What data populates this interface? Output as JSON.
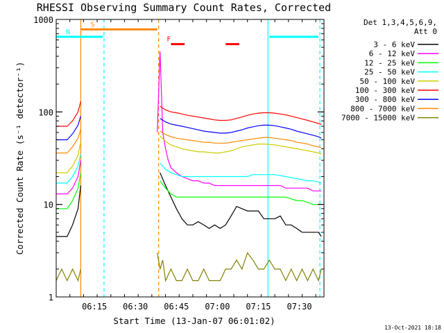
{
  "chart_data": {
    "type": "line",
    "title": "RHESSI Observing Summary Count Rates, Corrected",
    "xlabel": "Start Time (13-Jan-07 06:01:02)",
    "ylabel": "Corrected Count Rate (s⁻¹ detector⁻¹)",
    "ylog": true,
    "xlim_min": [
      0,
      98
    ],
    "ylim": [
      1,
      1000
    ],
    "xticks": [
      {
        "min": 14,
        "label": "06:15"
      },
      {
        "min": 29,
        "label": "06:30"
      },
      {
        "min": 44,
        "label": "06:45"
      },
      {
        "min": 59,
        "label": "07:00"
      },
      {
        "min": 74,
        "label": "07:15"
      },
      {
        "min": 89,
        "label": "07:30"
      }
    ],
    "yticks": [
      {
        "value": 1,
        "label": "1"
      },
      {
        "value": 10,
        "label": "10"
      },
      {
        "value": 100,
        "label": "100"
      },
      {
        "value": 1000,
        "label": "1000"
      }
    ],
    "legend": {
      "header": [
        "Det 1,3,4,5,6,9,",
        "Att 0"
      ],
      "position": "right"
    },
    "series": [
      {
        "name": "3 - 6 keV",
        "color": "#000000",
        "x": [
          0,
          4,
          6,
          8,
          9,
          36,
          38,
          40,
          42,
          44,
          46,
          48,
          50,
          52,
          54,
          56,
          58,
          60,
          62,
          64,
          66,
          68,
          70,
          72,
          74,
          76,
          78,
          80,
          82,
          84,
          86,
          88,
          90,
          92,
          94,
          96,
          97
        ],
        "y": [
          4.5,
          4.5,
          6,
          9,
          16,
          null,
          22,
          16,
          12,
          9,
          7,
          6,
          6,
          6.5,
          6,
          5.5,
          6,
          5.5,
          6,
          7.5,
          9.5,
          9,
          8.5,
          8.5,
          8.5,
          7,
          7,
          7,
          7.5,
          6,
          6,
          5.5,
          5,
          5,
          5,
          5,
          4.5
        ]
      },
      {
        "name": "6 - 12 keV",
        "color": "#ff00ff",
        "x": [
          0,
          4,
          6,
          8,
          9,
          36,
          37,
          38,
          39,
          40,
          41,
          42,
          44,
          46,
          48,
          50,
          52,
          54,
          56,
          58,
          60,
          62,
          64,
          66,
          68,
          70,
          72,
          74,
          76,
          78,
          80,
          82,
          84,
          86,
          88,
          90,
          92,
          94,
          96,
          97
        ],
        "y": [
          13,
          13,
          15,
          20,
          30,
          null,
          60,
          450,
          60,
          40,
          30,
          25,
          22,
          20,
          19,
          18,
          18,
          17,
          17,
          16,
          16,
          16,
          16,
          16,
          16,
          16,
          16,
          16,
          16,
          16,
          16,
          16,
          15,
          15,
          15,
          15,
          15,
          14,
          14,
          14
        ]
      },
      {
        "name": "12 - 25 keV",
        "color": "#00ff00",
        "x": [
          0,
          4,
          6,
          8,
          9,
          36,
          38,
          40,
          42,
          44,
          46,
          48,
          50,
          52,
          54,
          56,
          58,
          60,
          62,
          64,
          66,
          68,
          70,
          72,
          74,
          76,
          78,
          80,
          82,
          84,
          86,
          88,
          90,
          92,
          94,
          96,
          97
        ],
        "y": [
          9,
          9,
          11,
          15,
          22,
          null,
          18,
          15,
          13,
          12,
          12,
          12,
          12,
          12,
          12,
          12,
          12,
          12,
          12,
          12,
          12,
          12,
          12,
          12,
          12,
          12,
          12,
          12,
          12,
          12,
          11.5,
          11,
          11,
          10.5,
          10,
          10,
          10
        ]
      },
      {
        "name": "25 - 50 keV",
        "color": "#00ffff",
        "x": [
          0,
          4,
          6,
          8,
          9,
          36,
          38,
          40,
          42,
          44,
          46,
          48,
          50,
          52,
          54,
          56,
          58,
          60,
          62,
          64,
          66,
          68,
          70,
          72,
          74,
          76,
          78,
          80,
          82,
          84,
          86,
          88,
          90,
          92,
          94,
          96,
          97
        ],
        "y": [
          17,
          17,
          20,
          26,
          35,
          null,
          28,
          24,
          22,
          21,
          20,
          20,
          20,
          20,
          20,
          20,
          20,
          20,
          20,
          20,
          20,
          20,
          20,
          21,
          21,
          21,
          21,
          21,
          20.5,
          20,
          19.5,
          19,
          18.5,
          18,
          18,
          17.5,
          17
        ]
      },
      {
        "name": "50 - 100 keV",
        "color": "#cccc00",
        "x": [
          0,
          4,
          6,
          8,
          9,
          36,
          38,
          40,
          42,
          44,
          46,
          48,
          50,
          52,
          54,
          56,
          58,
          60,
          62,
          64,
          66,
          68,
          70,
          72,
          74,
          76,
          78,
          80,
          82,
          84,
          86,
          88,
          90,
          92,
          94,
          96,
          97
        ],
        "y": [
          22,
          22,
          26,
          34,
          48,
          null,
          55,
          48,
          44,
          42,
          40,
          39,
          38,
          37,
          37,
          36.5,
          36,
          36,
          37,
          38,
          40,
          42,
          43,
          44,
          45,
          45,
          44.5,
          44,
          43,
          42,
          41,
          40,
          39,
          38,
          37,
          36,
          35
        ]
      },
      {
        "name": "100 - 300 keV",
        "color": "#ff0000",
        "x": [
          0,
          4,
          6,
          8,
          9,
          36,
          38,
          40,
          42,
          44,
          46,
          48,
          50,
          52,
          54,
          56,
          58,
          60,
          62,
          64,
          66,
          68,
          70,
          72,
          74,
          76,
          78,
          80,
          82,
          84,
          86,
          88,
          90,
          92,
          94,
          96,
          97
        ],
        "y": [
          70,
          70,
          80,
          100,
          130,
          null,
          115,
          105,
          100,
          98,
          95,
          92,
          90,
          88,
          86,
          84,
          82,
          81,
          81,
          82,
          85,
          88,
          92,
          95,
          97,
          98,
          98,
          97,
          95,
          93,
          90,
          87,
          84,
          81,
          78,
          75,
          73
        ]
      },
      {
        "name": "300 - 800 keV",
        "color": "#0000ff",
        "x": [
          0,
          4,
          6,
          8,
          9,
          36,
          38,
          40,
          42,
          44,
          46,
          48,
          50,
          52,
          54,
          56,
          58,
          60,
          62,
          64,
          66,
          68,
          70,
          72,
          74,
          76,
          78,
          80,
          82,
          84,
          86,
          88,
          90,
          92,
          94,
          96,
          97
        ],
        "y": [
          50,
          50,
          58,
          72,
          90,
          null,
          85,
          78,
          74,
          72,
          70,
          68,
          66,
          64,
          62,
          61,
          60,
          59,
          59,
          60,
          62,
          64,
          67,
          69,
          71,
          72,
          72,
          71,
          69,
          67,
          65,
          62,
          60,
          58,
          56,
          54,
          52
        ]
      },
      {
        "name": "800 - 7000 keV",
        "color": "#ff8800",
        "x": [
          0,
          4,
          6,
          8,
          9,
          36,
          38,
          40,
          42,
          44,
          46,
          48,
          50,
          52,
          54,
          56,
          58,
          60,
          62,
          64,
          66,
          68,
          70,
          72,
          74,
          76,
          78,
          80,
          82,
          84,
          86,
          88,
          90,
          92,
          94,
          96,
          97
        ],
        "y": [
          36,
          36,
          42,
          52,
          65,
          null,
          62,
          57,
          54,
          52,
          51,
          50,
          49,
          48,
          47,
          47,
          46,
          46,
          46,
          47,
          48,
          49,
          50,
          51,
          52,
          53,
          53,
          52,
          51,
          50,
          49,
          47,
          46,
          45,
          43,
          42,
          41
        ]
      },
      {
        "name": "7000 - 15000 keV",
        "color": "#808000",
        "x": [
          0,
          2,
          4,
          6,
          8,
          9,
          36,
          37,
          38,
          39,
          40,
          42,
          44,
          46,
          48,
          50,
          52,
          54,
          56,
          58,
          60,
          62,
          64,
          66,
          68,
          70,
          72,
          74,
          76,
          78,
          80,
          82,
          84,
          86,
          88,
          90,
          92,
          94,
          96,
          97
        ],
        "y": [
          1.5,
          2,
          1.5,
          2,
          1.5,
          2,
          null,
          3,
          2,
          2.5,
          1.5,
          2,
          1.5,
          1.5,
          2,
          1.5,
          1.5,
          2,
          1.5,
          1.5,
          1.5,
          2,
          2,
          2.5,
          2,
          3,
          2.5,
          2,
          2,
          2.5,
          2,
          2,
          1.5,
          2,
          1.5,
          2,
          1.5,
          2,
          1.5,
          2
        ]
      }
    ],
    "flag_bars": [
      {
        "label": "S",
        "color": "#ff8800",
        "x0_min": 9,
        "x1_min": 37,
        "level": 780
      },
      {
        "label": "N",
        "color": "#00ffff",
        "x0_min": 0,
        "x1_min": 17,
        "level": 650
      },
      {
        "label": "",
        "color": "#00ffff",
        "x0_min": 78,
        "x1_min": 96,
        "level": 650
      },
      {
        "label": "F",
        "color": "#ff0000",
        "x0_min": 42,
        "x1_min": 47,
        "level": 540
      },
      {
        "label": "",
        "color": "#ff0000",
        "x0_min": 62,
        "x1_min": 67,
        "level": 540
      }
    ],
    "vlines": [
      {
        "min": 9,
        "color": "#ff8800",
        "style": "solid"
      },
      {
        "min": 17.5,
        "color": "#00ffff",
        "style": "dashed"
      },
      {
        "min": 37.5,
        "color": "#ff8800",
        "style": "dashed"
      },
      {
        "min": 77.5,
        "color": "#00ffff",
        "style": "solid"
      },
      {
        "min": 96.5,
        "color": "#00ffff",
        "style": "dashed"
      }
    ],
    "timestamp": "13-Oct-2021 18:18"
  }
}
